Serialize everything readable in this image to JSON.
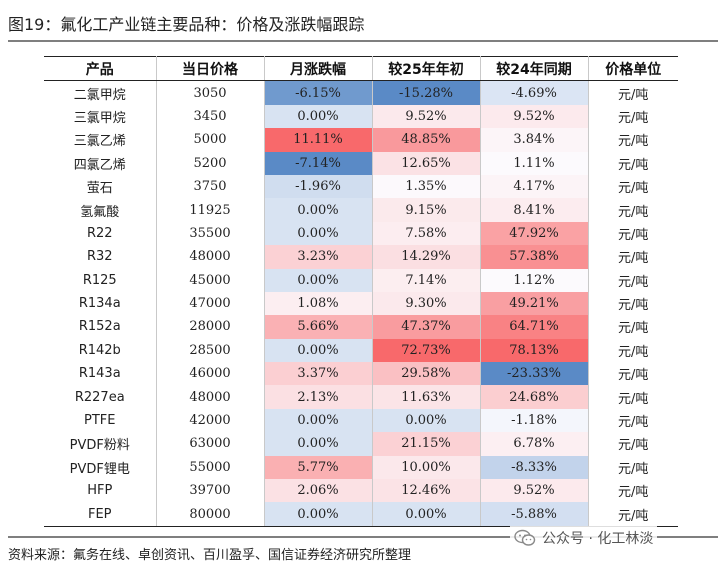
{
  "title": "图19：氟化工产业链主要品种：价格及涨跌幅跟踪",
  "headers": [
    "产品",
    "当日价格",
    "月涨跌幅",
    "较25年年初",
    "较24年同期",
    "价格单位"
  ],
  "rows": [
    {
      "product": "二氯甲烷",
      "price": "3050",
      "mom": "-6.15%",
      "ytd": "-15.28%",
      "yoy": "-4.69%",
      "unit": "元/吨"
    },
    {
      "product": "三氯甲烷",
      "price": "3450",
      "mom": "0.00%",
      "ytd": "9.52%",
      "yoy": "9.52%",
      "unit": "元/吨"
    },
    {
      "product": "三氯乙烯",
      "price": "5000",
      "mom": "11.11%",
      "ytd": "48.85%",
      "yoy": "3.84%",
      "unit": "元/吨"
    },
    {
      "product": "四氯乙烯",
      "price": "5200",
      "mom": "-7.14%",
      "ytd": "12.65%",
      "yoy": "1.11%",
      "unit": "元/吨"
    },
    {
      "product": "萤石",
      "price": "3750",
      "mom": "-1.96%",
      "ytd": "1.35%",
      "yoy": "4.17%",
      "unit": "元/吨"
    },
    {
      "product": "氢氟酸",
      "price": "11925",
      "mom": "0.00%",
      "ytd": "9.15%",
      "yoy": "8.41%",
      "unit": "元/吨"
    },
    {
      "product": "R22",
      "price": "35500",
      "mom": "0.00%",
      "ytd": "7.58%",
      "yoy": "47.92%",
      "unit": "元/吨"
    },
    {
      "product": "R32",
      "price": "48000",
      "mom": "3.23%",
      "ytd": "14.29%",
      "yoy": "57.38%",
      "unit": "元/吨"
    },
    {
      "product": "R125",
      "price": "45000",
      "mom": "0.00%",
      "ytd": "7.14%",
      "yoy": "1.12%",
      "unit": "元/吨"
    },
    {
      "product": "R134a",
      "price": "47000",
      "mom": "1.08%",
      "ytd": "9.30%",
      "yoy": "49.21%",
      "unit": "元/吨"
    },
    {
      "product": "R152a",
      "price": "28000",
      "mom": "5.66%",
      "ytd": "47.37%",
      "yoy": "64.71%",
      "unit": "元/吨"
    },
    {
      "product": "R142b",
      "price": "28500",
      "mom": "0.00%",
      "ytd": "72.73%",
      "yoy": "78.13%",
      "unit": "元/吨"
    },
    {
      "product": "R143a",
      "price": "46000",
      "mom": "3.37%",
      "ytd": "29.58%",
      "yoy": "-23.33%",
      "unit": "元/吨"
    },
    {
      "product": "R227ea",
      "price": "48000",
      "mom": "2.13%",
      "ytd": "11.63%",
      "yoy": "24.68%",
      "unit": "元/吨"
    },
    {
      "product": "PTFE",
      "price": "42000",
      "mom": "0.00%",
      "ytd": "0.00%",
      "yoy": "-1.18%",
      "unit": "元/吨"
    },
    {
      "product": "PVDF粉料",
      "price": "63000",
      "mom": "0.00%",
      "ytd": "21.15%",
      "yoy": "6.78%",
      "unit": "元/吨"
    },
    {
      "product": "PVDF锂电",
      "price": "55000",
      "mom": "5.77%",
      "ytd": "10.00%",
      "yoy": "-8.33%",
      "unit": "元/吨"
    },
    {
      "product": "HFP",
      "price": "39700",
      "mom": "2.06%",
      "ytd": "12.46%",
      "yoy": "9.52%",
      "unit": "元/吨"
    },
    {
      "product": "FEP",
      "price": "80000",
      "mom": "0.00%",
      "ytd": "0.00%",
      "yoy": "-5.88%",
      "unit": "元/吨"
    }
  ],
  "source": "资料来源：氟务在线、卓创资讯、百川盈孚、国信证券经济研究所整理",
  "watermark": {
    "icon": "wechat-icon",
    "text": "公众号 · 化工林淡"
  },
  "colors": {
    "positive": "#f8696b",
    "negative": "#5a8ac6",
    "neutral": "#fcfcff",
    "header_bg": "#ffffff"
  }
}
